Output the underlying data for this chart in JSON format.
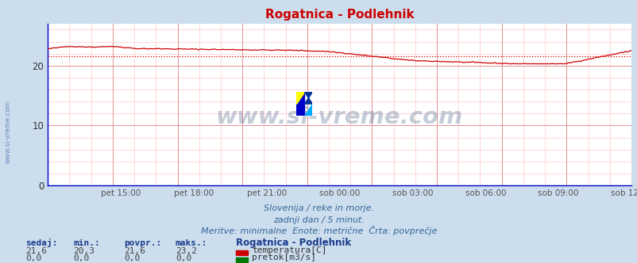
{
  "title": "Rogatnica - Podlehnik",
  "background_color": "#ccdded",
  "plot_bg_color": "#ffffff",
  "xlabel_ticks": [
    "pet 15:00",
    "pet 18:00",
    "pet 21:00",
    "sob 00:00",
    "sob 03:00",
    "sob 06:00",
    "sob 09:00",
    "sob 12:00"
  ],
  "yticks": [
    0,
    10,
    20
  ],
  "ylim": [
    0,
    27
  ],
  "xlim": [
    0,
    287
  ],
  "temp_color": "#cc0000",
  "avg_color": "#cc0000",
  "flow_color": "#007700",
  "spine_color": "#0000cc",
  "watermark_text": "www.si-vreme.com",
  "watermark_color": "#1a3a6e",
  "watermark_alpha": 0.25,
  "footer_lines": [
    "Slovenija / reke in morje.",
    "zadnji dan / 5 minut.",
    "Meritve: minimalne  Enote: metrične  Črta: povprečje"
  ],
  "footer_color": "#336699",
  "legend_title": "Rogatnica - Podlehnik",
  "legend_items": [
    {
      "label": "temperatura[C]",
      "color": "#cc0000"
    },
    {
      "label": "pretok[m3/s]",
      "color": "#007700"
    }
  ],
  "stats_headers": [
    "sedaj:",
    "min.:",
    "povpr.:",
    "maks.:"
  ],
  "stats_temp": [
    "21,6",
    "20,3",
    "21,6",
    "23,2"
  ],
  "stats_flow": [
    "0,0",
    "0,0",
    "0,0",
    "0,0"
  ],
  "temp_avg": 21.6,
  "temp_min": 20.3,
  "temp_max": 23.2,
  "n_points": 288
}
